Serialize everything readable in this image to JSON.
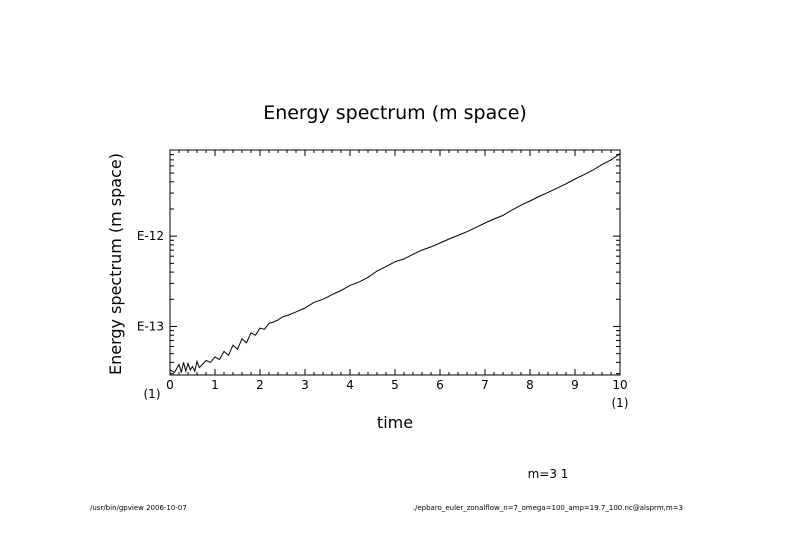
{
  "chart_data": {
    "type": "line",
    "title": "Energy spectrum (m space)",
    "xlabel": "time",
    "ylabel": "Energy spectrum (m space)",
    "x_multiplier_left": "(1)",
    "x_multiplier_right": "(1)",
    "xlim": [
      0,
      10
    ],
    "ylim": [
      2.9e-14,
      9e-12
    ],
    "yscale": "log",
    "x_ticks": [
      "0",
      "1",
      "2",
      "3",
      "4",
      "5",
      "6",
      "7",
      "8",
      "9",
      "10"
    ],
    "y_ticks": [
      {
        "label": "E-13",
        "value": 1e-13
      },
      {
        "label": "E-12",
        "value": 1e-12
      }
    ],
    "grid": false,
    "series": [
      {
        "values_desc": "",
        "x": [
          0.0,
          0.1,
          0.2,
          0.25,
          0.3,
          0.35,
          0.4,
          0.45,
          0.5,
          0.55,
          0.6,
          0.65,
          0.7,
          0.8,
          0.9,
          1.0,
          1.1,
          1.2,
          1.3,
          1.4,
          1.5,
          1.6,
          1.7,
          1.8,
          1.9,
          2.0,
          2.1,
          2.2,
          2.3,
          2.4,
          2.5,
          2.6,
          2.8,
          3.0,
          3.2,
          3.4,
          3.6,
          3.8,
          4.0,
          4.2,
          4.4,
          4.6,
          4.8,
          5.0,
          5.2,
          5.4,
          5.6,
          5.8,
          6.0,
          6.2,
          6.4,
          6.6,
          6.8,
          7.0,
          7.2,
          7.4,
          7.6,
          7.8,
          8.0,
          8.2,
          8.4,
          8.6,
          8.8,
          9.0,
          9.2,
          9.4,
          9.6,
          9.8,
          10.0
        ],
        "y": [
          3.3e-14,
          3.1e-14,
          3.8e-14,
          3.1e-14,
          4e-14,
          3.2e-14,
          3.9e-14,
          3.3e-14,
          3.6e-14,
          3.2e-14,
          4.1e-14,
          3.5e-14,
          3.7e-14,
          4.2e-14,
          4e-14,
          4.6e-14,
          4.3e-14,
          5.3e-14,
          4.8e-14,
          6.2e-14,
          5.6e-14,
          7.3e-14,
          6.6e-14,
          8.5e-14,
          8e-14,
          9.6e-14,
          9.3e-14,
          1.08e-13,
          1.12e-13,
          1.18e-13,
          1.28e-13,
          1.32e-13,
          1.45e-13,
          1.6e-13,
          1.85e-13,
          2e-13,
          2.25e-13,
          2.5e-13,
          2.85e-13,
          3.1e-13,
          3.5e-13,
          4.1e-13,
          4.6e-13,
          5.2e-13,
          5.6e-13,
          6.3e-13,
          7e-13,
          7.6e-13,
          8.4e-13,
          9.3e-13,
          1.02e-12,
          1.12e-12,
          1.25e-12,
          1.4e-12,
          1.55e-12,
          1.7e-12,
          1.95e-12,
          2.2e-12,
          2.45e-12,
          2.75e-12,
          3.05e-12,
          3.4e-12,
          3.8e-12,
          4.3e-12,
          4.8e-12,
          5.4e-12,
          6.2e-12,
          7e-12,
          8.2e-12
        ]
      }
    ],
    "annotation_right": "m=3 1"
  },
  "footer": {
    "left": "/usr/bin/gpview  2006-10-07",
    "right": "./epbaro_euler_zonalflow_n=7_omega=100_amp=19.7_100.nc@alsprm,m=3"
  }
}
